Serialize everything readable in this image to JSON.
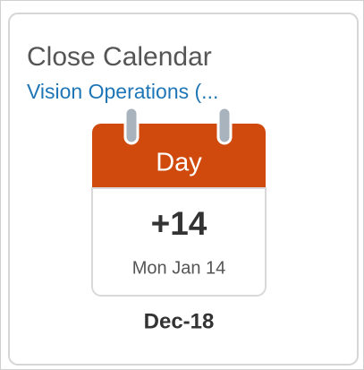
{
  "card": {
    "title": "Close Calendar",
    "subtitle": "Vision Operations (...",
    "calendar": {
      "header": "Day",
      "value": "+14",
      "date": "Mon Jan 14"
    },
    "period": "Dec-18"
  }
}
